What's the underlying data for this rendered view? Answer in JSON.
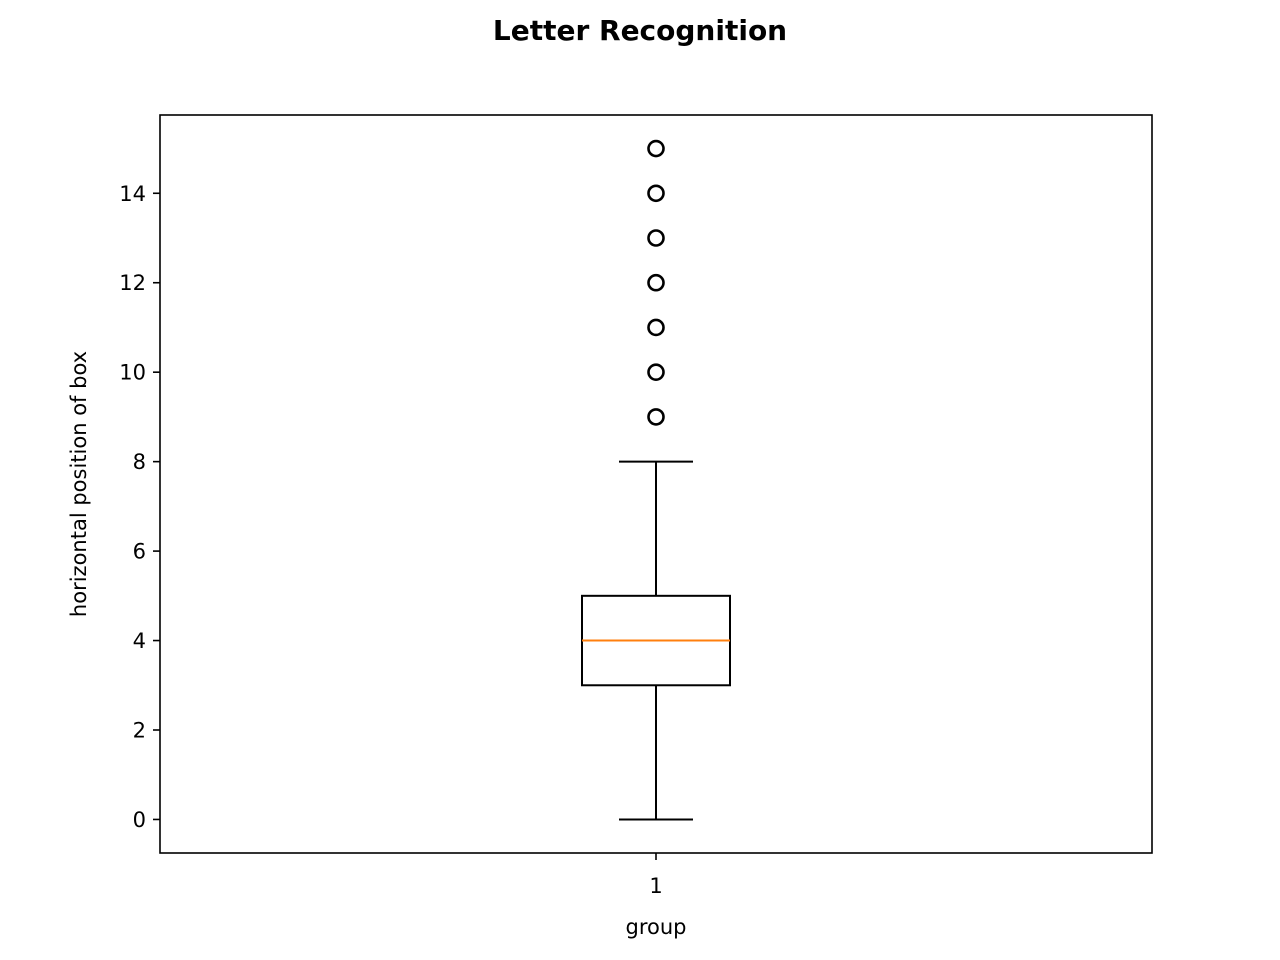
{
  "chart_data": {
    "type": "boxplot",
    "title": "Letter Recognition",
    "xlabel": "group",
    "ylabel": "horizontal position of box",
    "categories": [
      "1"
    ],
    "ylim": [
      -0.75,
      15.75
    ],
    "yticks": [
      0,
      2,
      4,
      6,
      8,
      10,
      12,
      14
    ],
    "grid": false,
    "boxes": [
      {
        "category": "1",
        "whisker_low": 0,
        "q1": 3,
        "median": 4,
        "q3": 5,
        "whisker_high": 8,
        "outliers": [
          9,
          10,
          11,
          12,
          13,
          14,
          15
        ]
      }
    ],
    "colors": {
      "box": "#000000",
      "median": "#ff7f0e",
      "whisker": "#000000",
      "flier": "#000000"
    }
  }
}
